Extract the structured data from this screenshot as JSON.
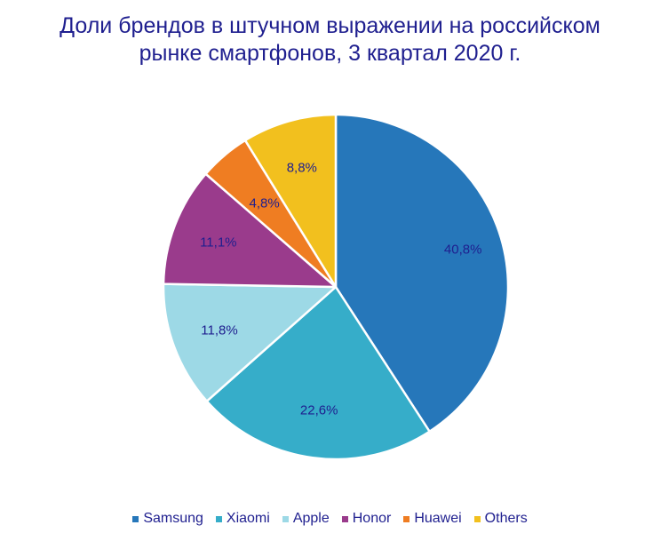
{
  "chart_data": {
    "type": "pie",
    "title_lines": [
      "Доли брендов в штучном выражении на российском",
      "рынке смартфонов, 3 квартал 2020 г."
    ],
    "slices": [
      {
        "name": "Samsung",
        "value": 40.8,
        "label": "40,8%",
        "color": "#2677ba"
      },
      {
        "name": "Xiaomi",
        "value": 22.6,
        "label": "22,6%",
        "color": "#36adc9"
      },
      {
        "name": "Apple",
        "value": 11.8,
        "label": "11,8%",
        "color": "#9dd9e6"
      },
      {
        "name": "Honor",
        "value": 11.1,
        "label": "11,1%",
        "color": "#9a3b8c"
      },
      {
        "name": "Huawei",
        "value": 4.8,
        "label": "4,8%",
        "color": "#ef7d22"
      },
      {
        "name": "Others",
        "value": 8.8,
        "label": "8,8%",
        "color": "#f2c01e"
      }
    ],
    "label_color": "#1f1f8f",
    "legend_position": "bottom"
  }
}
